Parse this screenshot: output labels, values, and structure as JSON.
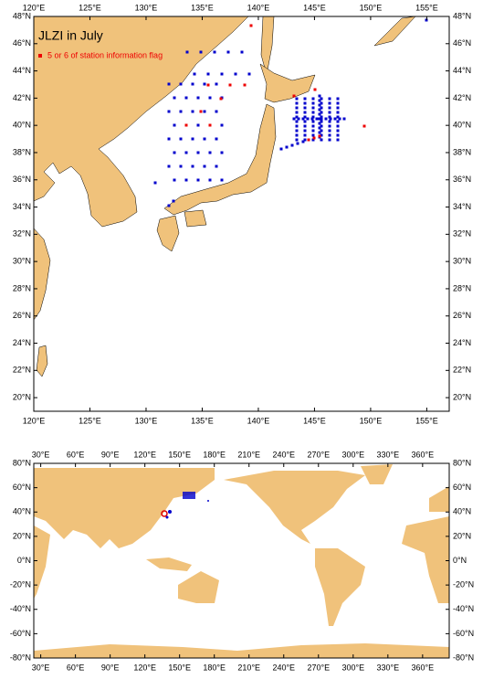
{
  "top_map": {
    "title": "JLZI in July",
    "legend": "5 or 6 of station information flag",
    "xlim": [
      120,
      157
    ],
    "ylim": [
      19,
      48
    ],
    "xticks": [
      {
        "value": 120,
        "label": "120°E"
      },
      {
        "value": 125,
        "label": "125°E"
      },
      {
        "value": 130,
        "label": "130°E"
      },
      {
        "value": 135,
        "label": "135°E"
      },
      {
        "value": 140,
        "label": "140°E"
      },
      {
        "value": 145,
        "label": "145°E"
      },
      {
        "value": 150,
        "label": "150°E"
      },
      {
        "value": 155,
        "label": "155°E"
      }
    ],
    "yticks": [
      {
        "value": 20,
        "label": "20°N"
      },
      {
        "value": 22,
        "label": "22°N"
      },
      {
        "value": 24,
        "label": "24°N"
      },
      {
        "value": 26,
        "label": "26°N"
      },
      {
        "value": 28,
        "label": "28°N"
      },
      {
        "value": 30,
        "label": "30°N"
      },
      {
        "value": 32,
        "label": "32°N"
      },
      {
        "value": 34,
        "label": "34°N"
      },
      {
        "value": 36,
        "label": "36°N"
      },
      {
        "value": 38,
        "label": "38°N"
      },
      {
        "value": 40,
        "label": "40°N"
      },
      {
        "value": 42,
        "label": "42°N"
      },
      {
        "value": 44,
        "label": "44°N"
      },
      {
        "value": 46,
        "label": "46°N"
      },
      {
        "value": 48,
        "label": "48°N"
      }
    ]
  },
  "world_map": {
    "xlim": [
      24,
      383
    ],
    "ylim": [
      -80,
      80
    ],
    "xticks": [
      {
        "value": 30,
        "label": "30°E"
      },
      {
        "value": 60,
        "label": "60°E"
      },
      {
        "value": 90,
        "label": "90°E"
      },
      {
        "value": 120,
        "label": "120°E"
      },
      {
        "value": 150,
        "label": "150°E"
      },
      {
        "value": 180,
        "label": "180°E"
      },
      {
        "value": 210,
        "label": "210°E"
      },
      {
        "value": 240,
        "label": "240°E"
      },
      {
        "value": 270,
        "label": "270°E"
      },
      {
        "value": 300,
        "label": "300°E"
      },
      {
        "value": 330,
        "label": "330°E"
      },
      {
        "value": 360,
        "label": "360°E"
      }
    ],
    "yticks": [
      {
        "value": -80,
        "label": "-80°N"
      },
      {
        "value": -60,
        "label": "-60°N"
      },
      {
        "value": -40,
        "label": "-40°N"
      },
      {
        "value": -20,
        "label": "-20°N"
      },
      {
        "value": 0,
        "label": "0°N"
      },
      {
        "value": 20,
        "label": "20°N"
      },
      {
        "value": 40,
        "label": "40°N"
      },
      {
        "value": 60,
        "label": "60°N"
      },
      {
        "value": 80,
        "label": "80°N"
      }
    ]
  }
}
